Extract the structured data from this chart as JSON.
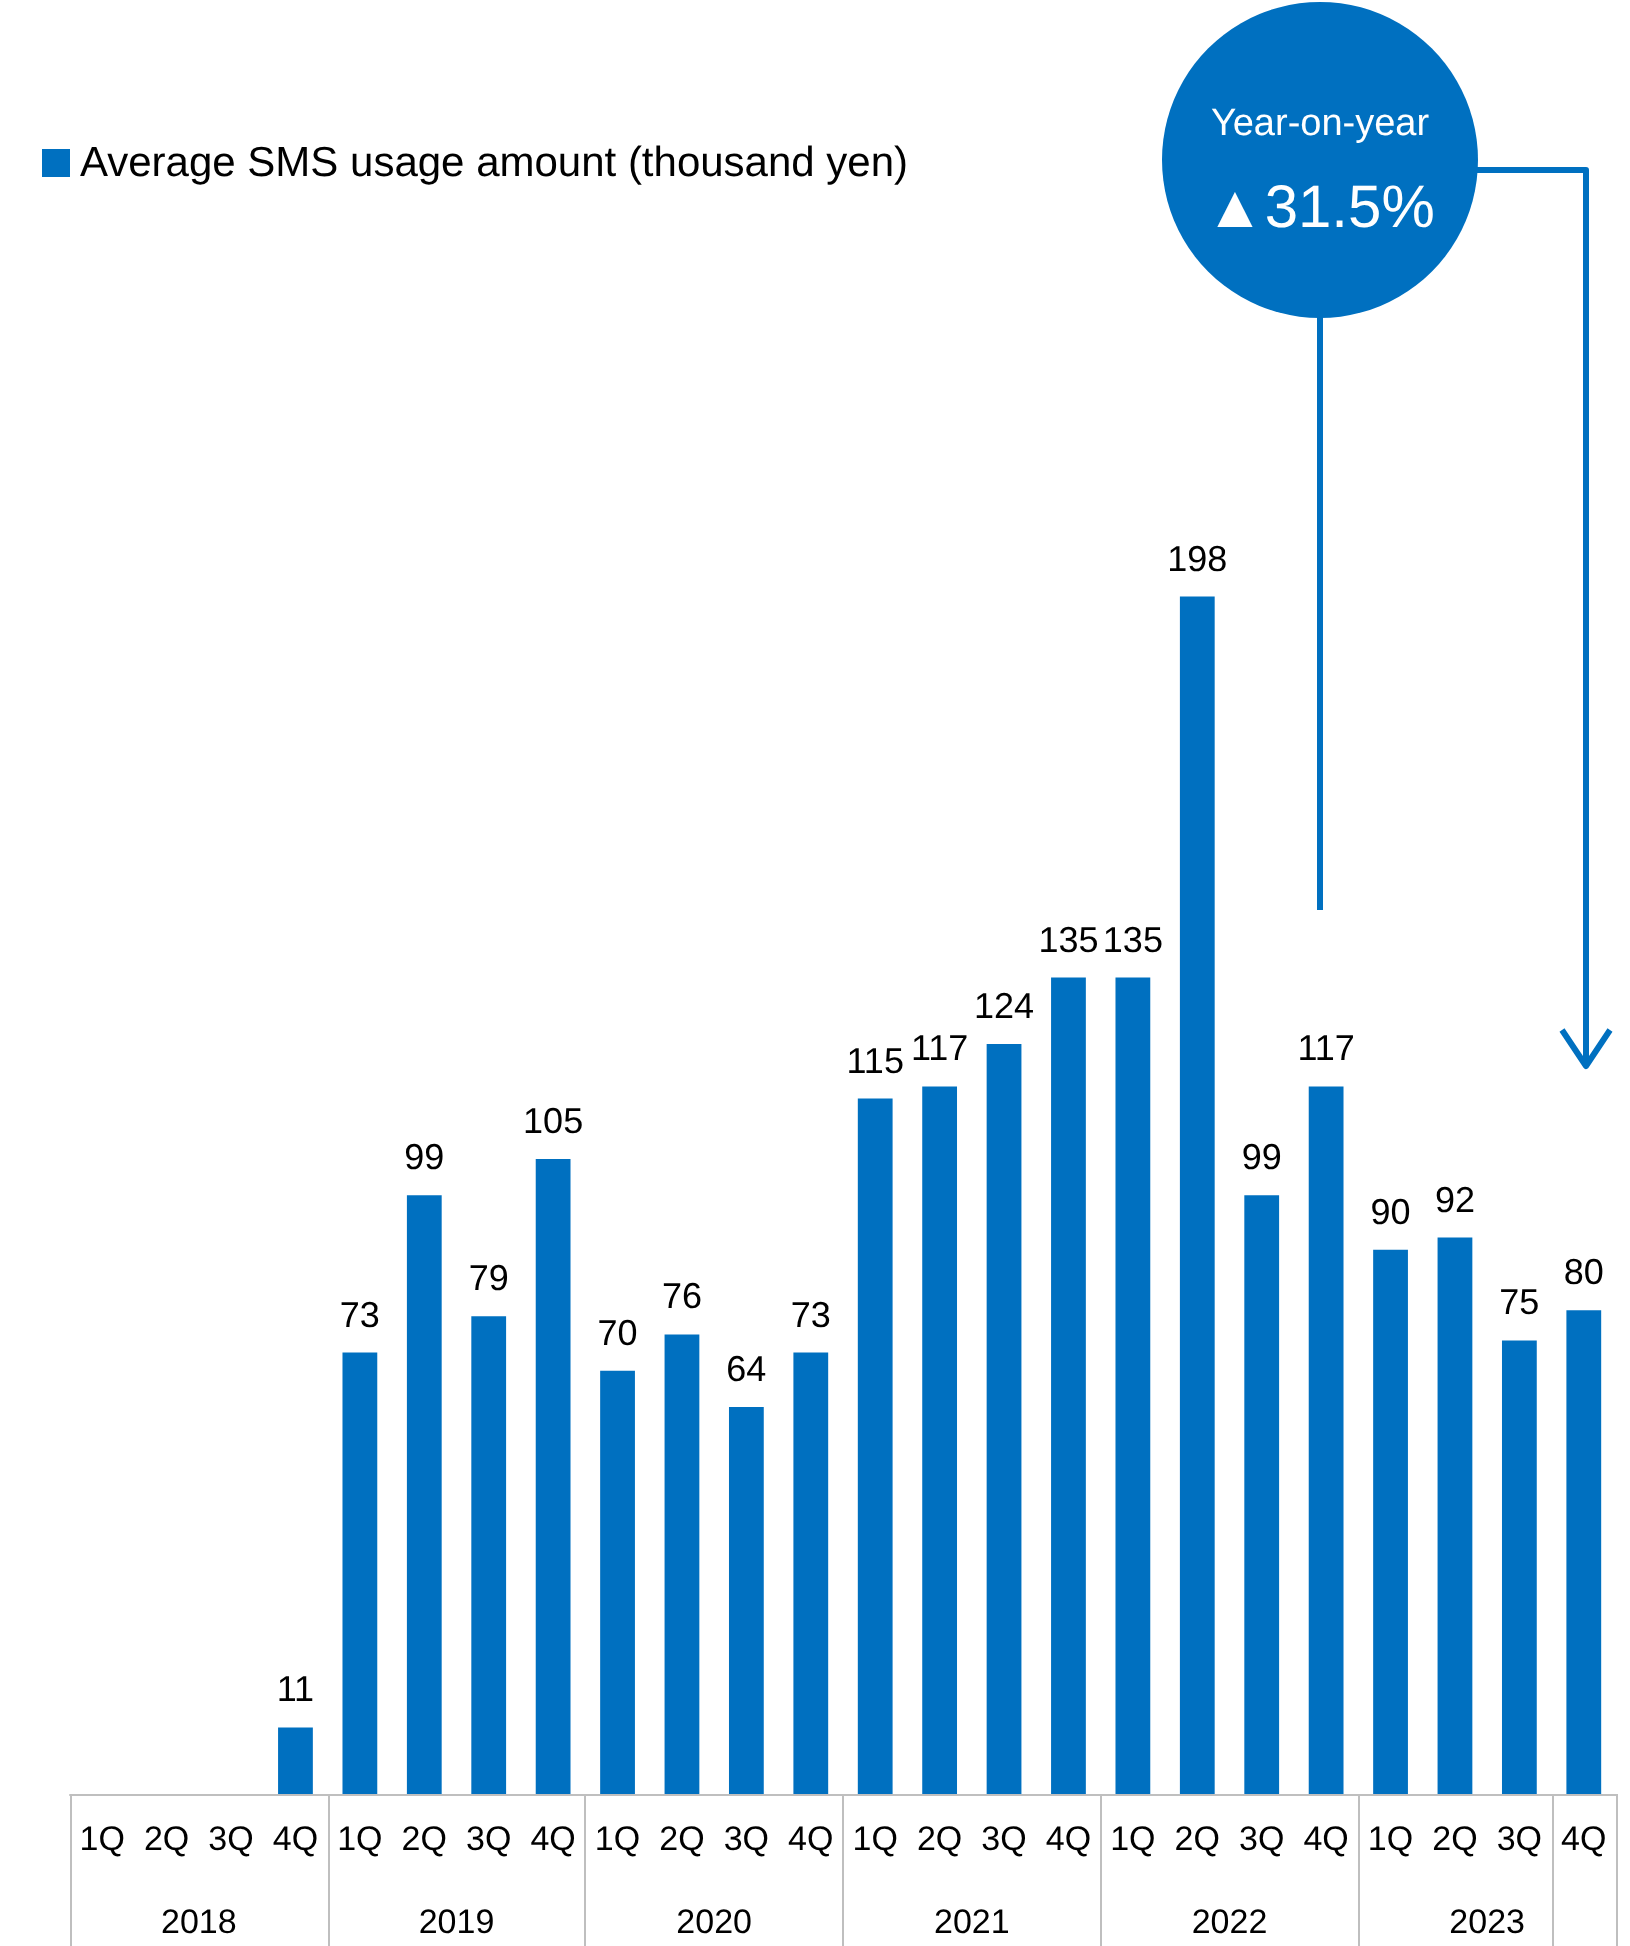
{
  "chart_data": {
    "type": "bar",
    "categories": [
      "1Q",
      "2Q",
      "3Q",
      "4Q",
      "1Q",
      "2Q",
      "3Q",
      "4Q",
      "1Q",
      "2Q",
      "3Q",
      "4Q",
      "1Q",
      "2Q",
      "3Q",
      "4Q",
      "1Q",
      "2Q",
      "3Q",
      "4Q",
      "1Q",
      "2Q",
      "3Q",
      "4Q"
    ],
    "series": [
      {
        "name": "Average SMS usage amount (thousand yen)",
        "color": "#0070c0",
        "values": [
          null,
          null,
          null,
          11,
          73,
          99,
          79,
          105,
          70,
          76,
          64,
          73,
          115,
          117,
          124,
          135,
          135,
          198,
          99,
          117,
          90,
          92,
          75,
          80
        ]
      }
    ],
    "data_labels": true,
    "legend": "top left",
    "tick_labels": "x",
    "annotations": [
      "Year-on-year",
      "▲31.5%",
      "2018",
      "2019",
      "2020",
      "2021",
      "2022",
      "2023"
    ]
  }
}
